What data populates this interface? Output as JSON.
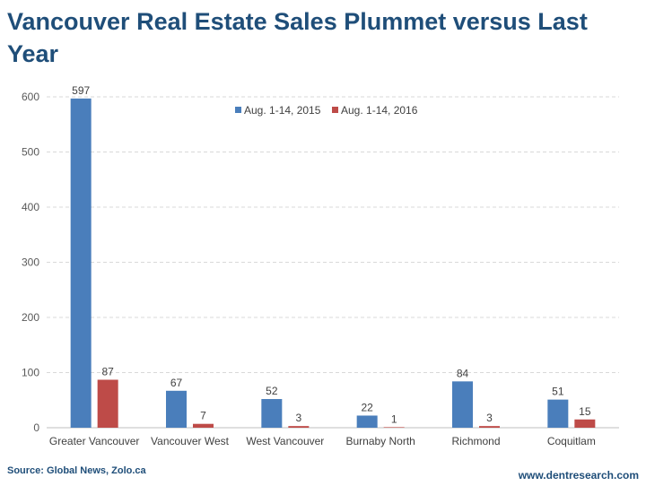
{
  "title": "Vancouver Real Estate Sales Plummet versus Last Year",
  "footer": {
    "source": "Source: Global News, Zolo.ca",
    "website": "www.dentresearch.com"
  },
  "colors": {
    "series1": "#4a7ebb",
    "series2": "#be4b48",
    "grid": "#d9d9d9"
  },
  "chart_data": {
    "type": "bar",
    "title": "Vancouver Real Estate Sales Plummet versus Last Year",
    "xlabel": "",
    "ylabel": "",
    "ylim": [
      0,
      600
    ],
    "yticks": [
      0,
      100,
      200,
      300,
      400,
      500,
      600
    ],
    "grid": true,
    "legend_position": "top-center",
    "categories": [
      "Greater Vancouver",
      "Vancouver West",
      "West Vancouver",
      "Burnaby North",
      "Richmond",
      "Coquitlam"
    ],
    "series": [
      {
        "name": "Aug. 1-14, 2015",
        "values": [
          597,
          67,
          52,
          22,
          84,
          51
        ]
      },
      {
        "name": "Aug. 1-14, 2016",
        "values": [
          87,
          7,
          3,
          1,
          3,
          15
        ]
      }
    ]
  }
}
